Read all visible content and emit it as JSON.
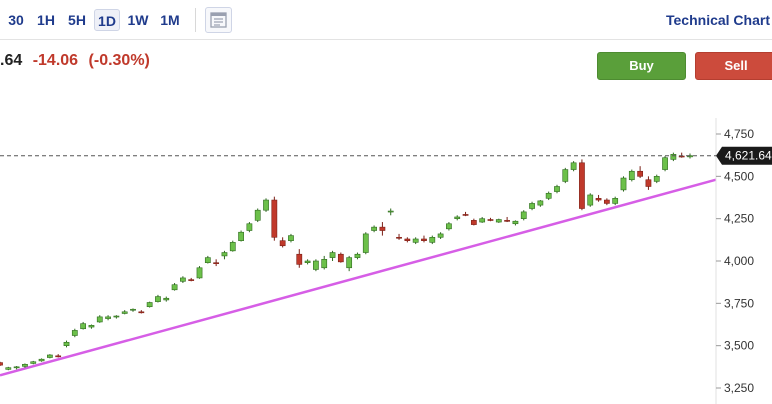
{
  "toolbar": {
    "timeframes": [
      {
        "label": "30",
        "active": false
      },
      {
        "label": "1H",
        "active": false
      },
      {
        "label": "5H",
        "active": false
      },
      {
        "label": "1D",
        "active": true
      },
      {
        "label": "1W",
        "active": false
      },
      {
        "label": "1M",
        "active": false
      }
    ],
    "chart_type_icon": "candlestick-chart-icon",
    "technical_chart_link": "Technical Chart"
  },
  "quote": {
    "last": ".64",
    "change": "-14.06",
    "change_pct": "(-0.30%)"
  },
  "actions": {
    "buy_label": "Buy",
    "sell_label": "Sell"
  },
  "colors": {
    "up": "#6cc04a",
    "down": "#c0392b",
    "trendline": "#d65ee6",
    "price_tag": "#1a1a1a",
    "buy": "#5a9f3a",
    "sell": "#cc4b3c"
  },
  "chart_data": {
    "type": "candlestick",
    "y_ticks": [
      "4,750",
      "4,500",
      "4,250",
      "4,000",
      "3,750",
      "3,500",
      "3,250"
    ],
    "y_tick_values": [
      4750,
      4500,
      4250,
      4000,
      3750,
      3500,
      3250
    ],
    "ylim": [
      3230,
      4820
    ],
    "current_price_label": "4,621.64",
    "current_price": 4621.64,
    "trendline": {
      "start": 3325,
      "end": 4480
    },
    "candles": [
      [
        3400,
        3405,
        3380,
        3385
      ],
      [
        3360,
        3375,
        3355,
        3370
      ],
      [
        3370,
        3380,
        3360,
        3375
      ],
      [
        3378,
        3395,
        3370,
        3390
      ],
      [
        3395,
        3410,
        3390,
        3405
      ],
      [
        3410,
        3425,
        3405,
        3420
      ],
      [
        3430,
        3450,
        3425,
        3445
      ],
      [
        3440,
        3450,
        3430,
        3435
      ],
      [
        3500,
        3530,
        3490,
        3520
      ],
      [
        3560,
        3600,
        3550,
        3590
      ],
      [
        3600,
        3640,
        3595,
        3630
      ],
      [
        3610,
        3625,
        3600,
        3620
      ],
      [
        3640,
        3680,
        3635,
        3670
      ],
      [
        3660,
        3680,
        3650,
        3670
      ],
      [
        3670,
        3680,
        3660,
        3675
      ],
      [
        3690,
        3710,
        3685,
        3700
      ],
      [
        3710,
        3720,
        3700,
        3715
      ],
      [
        3700,
        3710,
        3690,
        3695
      ],
      [
        3730,
        3760,
        3725,
        3755
      ],
      [
        3760,
        3800,
        3755,
        3790
      ],
      [
        3770,
        3790,
        3760,
        3780
      ],
      [
        3830,
        3870,
        3825,
        3860
      ],
      [
        3880,
        3910,
        3870,
        3900
      ],
      [
        3890,
        3900,
        3880,
        3885
      ],
      [
        3900,
        3970,
        3895,
        3960
      ],
      [
        3990,
        4030,
        3985,
        4020
      ],
      [
        3990,
        4010,
        3970,
        3985
      ],
      [
        4030,
        4060,
        4010,
        4050
      ],
      [
        4060,
        4120,
        4055,
        4110
      ],
      [
        4120,
        4180,
        4115,
        4170
      ],
      [
        4180,
        4230,
        4170,
        4220
      ],
      [
        4240,
        4310,
        4230,
        4300
      ],
      [
        4300,
        4370,
        4290,
        4360
      ],
      [
        4360,
        4380,
        4120,
        4140
      ],
      [
        4120,
        4140,
        4080,
        4090
      ],
      [
        4120,
        4160,
        4110,
        4150
      ],
      [
        4040,
        4070,
        3960,
        3980
      ],
      [
        3990,
        4010,
        3980,
        4000
      ],
      [
        3950,
        4010,
        3940,
        4000
      ],
      [
        3960,
        4030,
        3950,
        4010
      ],
      [
        4020,
        4060,
        4000,
        4050
      ],
      [
        4040,
        4050,
        3990,
        3995
      ],
      [
        3960,
        4030,
        3940,
        4020
      ],
      [
        4020,
        4050,
        4010,
        4040
      ],
      [
        4050,
        4170,
        4040,
        4160
      ],
      [
        4180,
        4210,
        4170,
        4200
      ],
      [
        4200,
        4230,
        4150,
        4180
      ],
      [
        4290,
        4310,
        4270,
        4295
      ],
      [
        4140,
        4160,
        4125,
        4135
      ],
      [
        4130,
        4140,
        4110,
        4120
      ],
      [
        4110,
        4140,
        4100,
        4130
      ],
      [
        4130,
        4150,
        4110,
        4120
      ],
      [
        4110,
        4150,
        4100,
        4140
      ],
      [
        4140,
        4170,
        4130,
        4160
      ],
      [
        4190,
        4230,
        4180,
        4220
      ],
      [
        4250,
        4270,
        4240,
        4260
      ],
      [
        4275,
        4290,
        4265,
        4270
      ],
      [
        4240,
        4250,
        4210,
        4215
      ],
      [
        4230,
        4260,
        4225,
        4250
      ],
      [
        4245,
        4255,
        4235,
        4240
      ],
      [
        4230,
        4250,
        4225,
        4245
      ],
      [
        4240,
        4260,
        4230,
        4235
      ],
      [
        4220,
        4240,
        4210,
        4235
      ],
      [
        4250,
        4300,
        4240,
        4290
      ],
      [
        4310,
        4350,
        4300,
        4340
      ],
      [
        4330,
        4360,
        4320,
        4355
      ],
      [
        4370,
        4410,
        4360,
        4400
      ],
      [
        4410,
        4450,
        4400,
        4440
      ],
      [
        4470,
        4550,
        4460,
        4540
      ],
      [
        4540,
        4590,
        4530,
        4580
      ],
      [
        4580,
        4600,
        4300,
        4310
      ],
      [
        4330,
        4400,
        4320,
        4390
      ],
      [
        4370,
        4390,
        4350,
        4360
      ],
      [
        4360,
        4370,
        4330,
        4340
      ],
      [
        4340,
        4380,
        4330,
        4370
      ],
      [
        4420,
        4500,
        4410,
        4490
      ],
      [
        4480,
        4540,
        4470,
        4530
      ],
      [
        4530,
        4560,
        4490,
        4500
      ],
      [
        4480,
        4500,
        4420,
        4440
      ],
      [
        4470,
        4510,
        4460,
        4500
      ],
      [
        4540,
        4620,
        4530,
        4610
      ],
      [
        4600,
        4640,
        4590,
        4630
      ],
      [
        4620,
        4640,
        4610,
        4615
      ],
      [
        4615,
        4635,
        4605,
        4622
      ]
    ]
  }
}
